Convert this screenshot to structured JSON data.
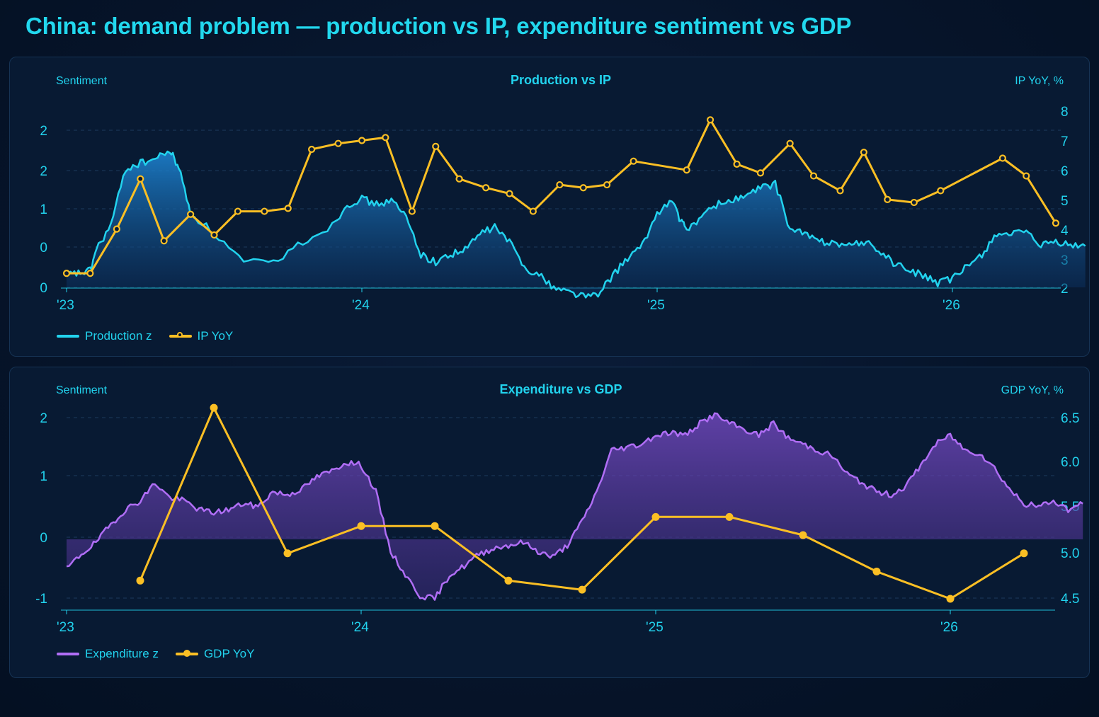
{
  "title": "China: demand problem — production vs IP, expenditure sentiment vs GDP",
  "chart_data": [
    {
      "type": "line",
      "title": "Production vs IP",
      "y_left_label": "Sentiment",
      "y_right_label": "IP YoY, %",
      "y_left_ticks": [
        "2",
        "2",
        "1",
        "0",
        "0"
      ],
      "y_right_ticks": [
        "8",
        "7",
        "6",
        "5",
        "4",
        "3",
        "2"
      ],
      "y_right_lim": [
        2,
        8
      ],
      "x_ticks": [
        "'23",
        "'24",
        "'25",
        "'26"
      ],
      "legend": [
        "Production z",
        "IP YoY"
      ],
      "colors": {
        "production": "#22d3ee",
        "ip": "#fbbf24"
      },
      "series": [
        {
          "name": "Production z",
          "axis": "left",
          "x": [
            2023.0,
            2023.04,
            2023.08,
            2023.1,
            2023.15,
            2023.2,
            2023.25,
            2023.3,
            2023.35,
            2023.38,
            2023.42,
            2023.5,
            2023.6,
            2023.7,
            2023.8,
            2023.9,
            2023.95,
            2024.0,
            2024.05,
            2024.1,
            2024.15,
            2024.2,
            2024.25,
            2024.3,
            2024.35,
            2024.4,
            2024.45,
            2024.5,
            2024.55,
            2024.6,
            2024.65,
            2024.7,
            2024.75,
            2024.8,
            2024.85,
            2024.9,
            2024.95,
            2025.0,
            2025.05,
            2025.08,
            2025.1,
            2025.15,
            2025.2,
            2025.25,
            2025.3,
            2025.35,
            2025.4,
            2025.45,
            2025.5,
            2025.55,
            2025.6,
            2025.65,
            2025.7,
            2025.75,
            2025.8,
            2025.85,
            2025.9,
            2025.95,
            2026.0,
            2026.05,
            2026.1,
            2026.15,
            2026.2,
            2026.25,
            2026.3,
            2026.35,
            2026.4,
            2026.45
          ],
          "values": [
            0.7,
            0.72,
            0.75,
            1.0,
            1.3,
            1.98,
            2.05,
            2.1,
            2.2,
            2.0,
            1.45,
            1.2,
            0.85,
            0.85,
            1.1,
            1.3,
            1.55,
            1.62,
            1.55,
            1.6,
            1.4,
            0.95,
            0.85,
            0.95,
            1.0,
            1.2,
            1.28,
            1.1,
            0.8,
            0.7,
            0.55,
            0.5,
            0.45,
            0.45,
            0.7,
            0.9,
            1.05,
            1.45,
            1.6,
            1.35,
            1.25,
            1.4,
            1.55,
            1.6,
            1.65,
            1.75,
            1.8,
            1.25,
            1.2,
            1.1,
            1.1,
            1.05,
            1.1,
            1.0,
            0.85,
            0.75,
            0.7,
            0.6,
            0.65,
            0.8,
            0.95,
            1.2,
            1.2,
            1.2,
            1.05,
            1.1,
            1.05,
            1.05
          ]
        },
        {
          "name": "IP YoY",
          "axis": "right",
          "x": [
            2023.0,
            2023.08,
            2023.17,
            2023.25,
            2023.33,
            2023.42,
            2023.5,
            2023.58,
            2023.67,
            2023.75,
            2023.83,
            2023.92,
            2024.0,
            2024.08,
            2024.17,
            2024.25,
            2024.33,
            2024.42,
            2024.5,
            2024.58,
            2024.67,
            2024.75,
            2024.83,
            2024.92,
            2025.1,
            2025.18,
            2025.27,
            2025.35,
            2025.45,
            2025.53,
            2025.62,
            2025.7,
            2025.78,
            2025.87,
            2025.96,
            2026.17,
            2026.25,
            2026.35
          ],
          "values": [
            2.5,
            2.5,
            4.0,
            5.7,
            3.6,
            4.5,
            3.8,
            4.6,
            4.6,
            4.7,
            6.7,
            6.9,
            7.0,
            7.1,
            4.6,
            6.8,
            5.7,
            5.4,
            5.2,
            4.6,
            5.5,
            5.4,
            5.5,
            6.3,
            6.0,
            7.7,
            6.2,
            5.9,
            6.9,
            5.8,
            5.3,
            6.6,
            5.0,
            4.9,
            5.3,
            6.4,
            5.8,
            4.2
          ]
        }
      ]
    },
    {
      "type": "line",
      "title": "Expenditure vs GDP",
      "y_left_label": "Sentiment",
      "y_right_label": "GDP YoY, %",
      "y_left_ticks": [
        "2",
        "1",
        "0",
        "-1"
      ],
      "y_left_lim": [
        -1.2,
        2.2
      ],
      "y_right_ticks": [
        "6.5",
        "6.0",
        "5.5",
        "5.0",
        "4.5"
      ],
      "y_right_lim": [
        4.45,
        6.6
      ],
      "x_ticks": [
        "'23",
        "'24",
        "'25",
        "'26"
      ],
      "legend": [
        "Expenditure z",
        "GDP YoY"
      ],
      "colors": {
        "expenditure": "#b06ef5",
        "gdp": "#fbbf24"
      },
      "series": [
        {
          "name": "Expenditure z",
          "axis": "left",
          "x": [
            2023.0,
            2023.05,
            2023.1,
            2023.15,
            2023.2,
            2023.25,
            2023.3,
            2023.35,
            2023.4,
            2023.45,
            2023.5,
            2023.55,
            2023.6,
            2023.65,
            2023.7,
            2023.75,
            2023.8,
            2023.85,
            2023.9,
            2023.95,
            2024.0,
            2024.05,
            2024.1,
            2024.15,
            2024.2,
            2024.25,
            2024.3,
            2024.35,
            2024.4,
            2024.45,
            2024.5,
            2024.55,
            2024.6,
            2024.65,
            2024.7,
            2024.75,
            2024.8,
            2024.85,
            2024.9,
            2024.95,
            2025.0,
            2025.05,
            2025.1,
            2025.15,
            2025.2,
            2025.25,
            2025.3,
            2025.35,
            2025.4,
            2025.45,
            2025.5,
            2025.55,
            2025.6,
            2025.65,
            2025.7,
            2025.75,
            2025.8,
            2025.85,
            2025.9,
            2025.95,
            2026.0,
            2026.05,
            2026.1,
            2026.15,
            2026.2,
            2026.25,
            2026.3,
            2026.35,
            2026.4,
            2026.45
          ],
          "values": [
            -0.5,
            -0.25,
            -0.05,
            0.25,
            0.5,
            0.65,
            0.95,
            0.7,
            0.65,
            0.5,
            0.45,
            0.5,
            0.6,
            0.55,
            0.8,
            0.75,
            0.85,
            1.05,
            1.15,
            1.3,
            1.25,
            0.8,
            -0.2,
            -0.6,
            -0.95,
            -1.0,
            -0.6,
            -0.45,
            -0.25,
            -0.15,
            -0.1,
            -0.05,
            -0.2,
            -0.3,
            -0.1,
            0.3,
            0.8,
            1.5,
            1.55,
            1.6,
            1.75,
            1.8,
            1.75,
            1.95,
            2.1,
            1.95,
            1.85,
            1.75,
            1.95,
            1.7,
            1.6,
            1.5,
            1.4,
            1.1,
            0.95,
            0.8,
            0.75,
            0.9,
            1.25,
            1.6,
            1.75,
            1.5,
            1.45,
            1.2,
            0.85,
            0.6,
            0.55,
            0.65,
            0.5,
            0.6
          ]
        },
        {
          "name": "GDP YoY",
          "axis": "right",
          "x": [
            2023.25,
            2023.5,
            2023.75,
            2024.0,
            2024.25,
            2024.5,
            2024.75,
            2025.0,
            2025.25,
            2025.5,
            2025.75,
            2026.0,
            2026.25
          ],
          "values": [
            4.7,
            6.6,
            5.0,
            5.3,
            5.3,
            4.7,
            4.6,
            5.4,
            5.4,
            5.2,
            4.8,
            4.5,
            5.0
          ]
        }
      ]
    }
  ]
}
